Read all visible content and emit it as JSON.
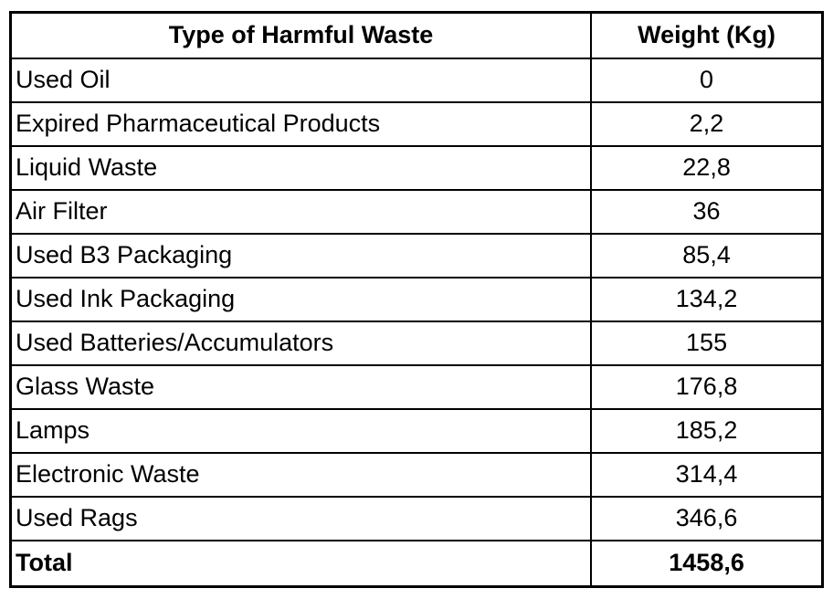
{
  "table": {
    "columns": [
      {
        "label": "Type of Harmful Waste"
      },
      {
        "label": "Weight (Kg)"
      }
    ],
    "rows": [
      {
        "type": "Used Oil",
        "weight": "0"
      },
      {
        "type": "Expired Pharmaceutical Products",
        "weight": "2,2"
      },
      {
        "type": "Liquid Waste",
        "weight": "22,8"
      },
      {
        "type": "Air Filter",
        "weight": "36"
      },
      {
        "type": "Used B3 Packaging",
        "weight": "85,4"
      },
      {
        "type": "Used Ink Packaging",
        "weight": "134,2"
      },
      {
        "type": "Used Batteries/Accumulators",
        "weight": "155"
      },
      {
        "type": "Glass Waste",
        "weight": "176,8"
      },
      {
        "type": "Lamps",
        "weight": "185,2"
      },
      {
        "type": "Electronic Waste",
        "weight": "314,4"
      },
      {
        "type": "Used Rags",
        "weight": "346,6"
      }
    ],
    "total": {
      "label": "Total",
      "weight": "1458,6"
    }
  },
  "chart_data": {
    "type": "table",
    "title": "",
    "columns": [
      "Type of Harmful Waste",
      "Weight (Kg)"
    ],
    "rows": [
      [
        "Used Oil",
        0
      ],
      [
        "Expired Pharmaceutical Products",
        2.2
      ],
      [
        "Liquid Waste",
        22.8
      ],
      [
        "Air Filter",
        36
      ],
      [
        "Used B3 Packaging",
        85.4
      ],
      [
        "Used Ink Packaging",
        134.2
      ],
      [
        "Used Batteries/Accumulators",
        155
      ],
      [
        "Glass Waste",
        176.8
      ],
      [
        "Lamps",
        185.2
      ],
      [
        "Electronic Waste",
        314.4
      ],
      [
        "Used Rags",
        346.6
      ]
    ],
    "total": [
      "Total",
      1458.6
    ],
    "decimal_separator": ","
  },
  "colors": {
    "border": "#000000",
    "text": "#000000",
    "background": "#ffffff"
  }
}
